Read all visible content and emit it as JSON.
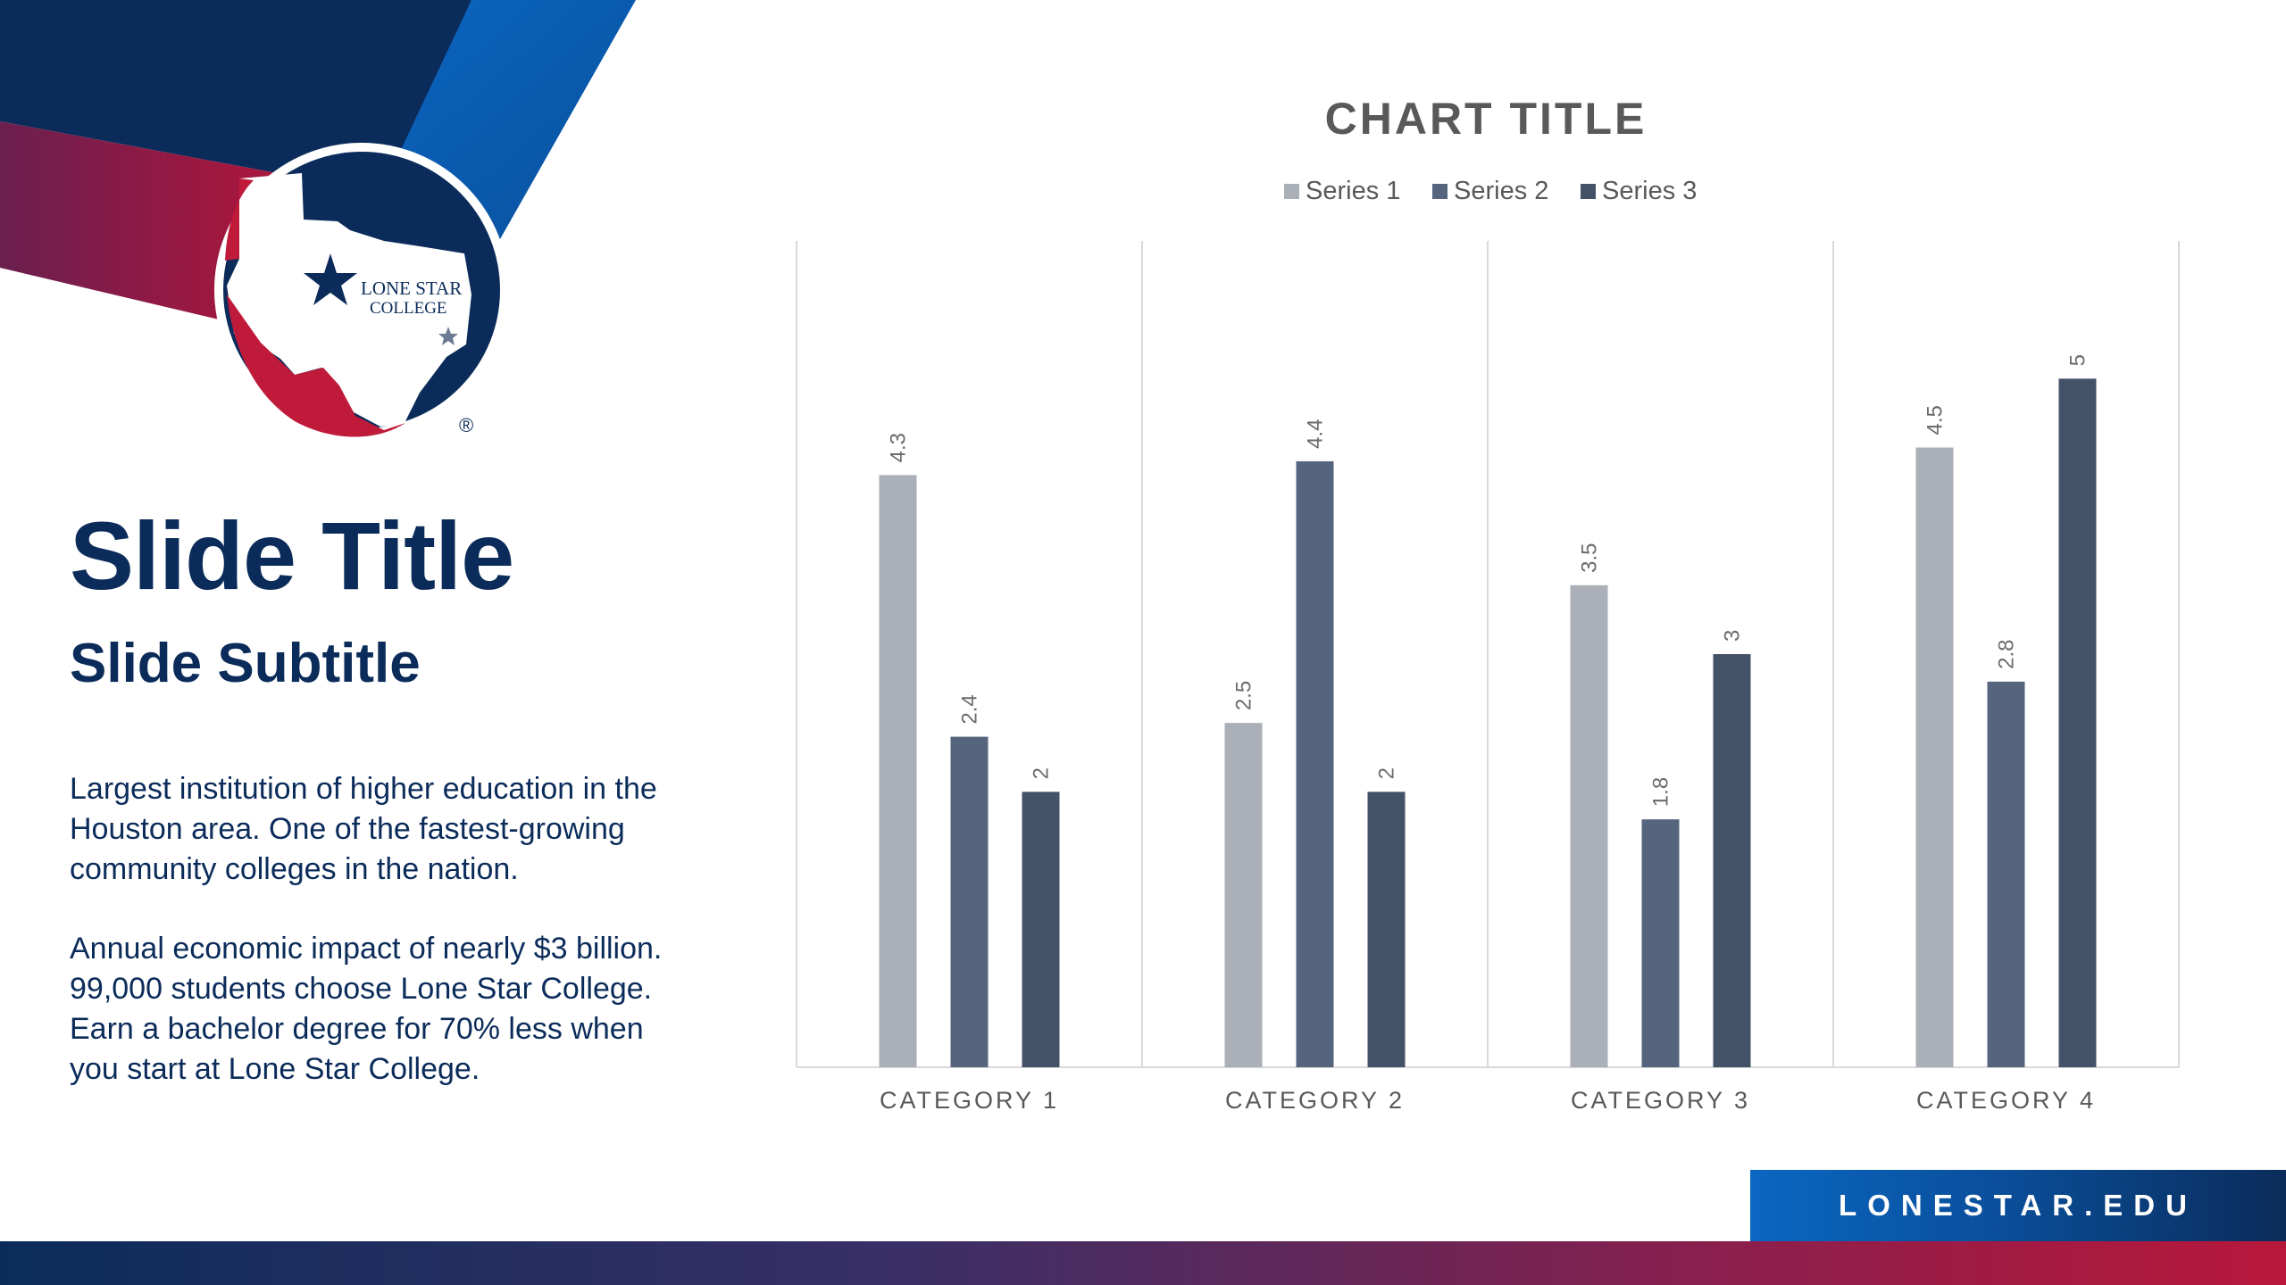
{
  "slide": {
    "title": "Slide Title",
    "subtitle": "Slide Subtitle",
    "paragraph1": "Largest institution of higher education in the Houston area. One of the fastest-growing community colleges in the nation.",
    "paragraph2": "Annual economic impact of nearly $3 billion. 99,000 students choose Lone Star College. Earn a bachelor degree for 70% less when you start at Lone Star College."
  },
  "logo": {
    "line1": "LONE STAR",
    "line2": "COLLEGE",
    "registered_mark": "®"
  },
  "footer": {
    "url": "LONESTAR.EDU"
  },
  "colors": {
    "navy": "#0b2c5a",
    "blue": "#0a67c2",
    "red": "#b8173a",
    "series1": "#abafb8",
    "series2": "#56657e",
    "series3": "#445268"
  },
  "chart_data": {
    "type": "bar",
    "title": "CHART TITLE",
    "categories": [
      "CATEGORY 1",
      "CATEGORY 2",
      "CATEGORY 3",
      "CATEGORY 4"
    ],
    "series": [
      {
        "name": "Series 1",
        "values": [
          4.3,
          2.5,
          3.5,
          4.5
        ]
      },
      {
        "name": "Series 2",
        "values": [
          2.4,
          4.4,
          1.8,
          2.8
        ]
      },
      {
        "name": "Series 3",
        "values": [
          2,
          2,
          3,
          5
        ]
      }
    ],
    "ylim": [
      0,
      6
    ],
    "legend": "top",
    "data_labels": true,
    "gridlines": "vertical category separators",
    "xlabel": "",
    "ylabel": ""
  }
}
